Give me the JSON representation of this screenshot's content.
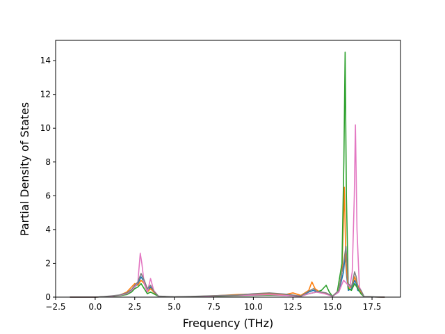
{
  "chart_data": {
    "type": "line",
    "title": "",
    "xlabel": "Frequency (THz)",
    "ylabel": "Partial Density of States",
    "xlim": [
      -2.5,
      19.3
    ],
    "ylim": [
      0,
      15.2
    ],
    "xticks": [
      -2.5,
      0.0,
      2.5,
      5.0,
      7.5,
      10.0,
      12.5,
      15.0,
      17.5
    ],
    "xtick_labels": [
      "−2.5",
      "0.0",
      "2.5",
      "5.0",
      "7.5",
      "10.0",
      "12.5",
      "15.0",
      "17.5"
    ],
    "yticks": [
      0,
      2,
      4,
      6,
      8,
      10,
      12,
      14
    ],
    "ytick_labels": [
      "0",
      "2",
      "4",
      "6",
      "8",
      "10",
      "12",
      "14"
    ],
    "grid": false,
    "legend": "none",
    "series": [
      {
        "color": "#1f77b4",
        "x": [
          -1.6,
          0.0,
          0.5,
          1.0,
          1.5,
          2.0,
          2.3,
          2.5,
          2.7,
          2.9,
          3.1,
          3.3,
          3.5,
          3.7,
          4.0,
          5.0,
          6.0,
          7.0,
          8.0,
          9.0,
          10.0,
          11.0,
          12.0,
          12.5,
          13.0,
          13.5,
          13.8,
          14.0,
          14.3,
          14.6,
          15.0,
          15.4,
          15.7,
          15.8,
          15.9,
          16.0,
          16.2,
          16.4,
          16.5,
          16.6,
          16.8,
          17.0,
          18.3
        ],
        "y": [
          0,
          0,
          0.02,
          0.05,
          0.1,
          0.2,
          0.4,
          0.6,
          0.8,
          1.2,
          0.9,
          0.4,
          0.6,
          0.3,
          0.05,
          0.01,
          0.02,
          0.05,
          0.08,
          0.1,
          0.15,
          0.2,
          0.15,
          0.1,
          0.05,
          0.3,
          0.4,
          0.3,
          0.25,
          0.2,
          0.05,
          0.3,
          1.5,
          2.5,
          1.2,
          0.4,
          0.5,
          1.0,
          0.8,
          0.4,
          0.3,
          0.02,
          0
        ]
      },
      {
        "color": "#ff7f0e",
        "x": [
          -1.6,
          0.0,
          0.5,
          1.0,
          1.5,
          2.0,
          2.3,
          2.5,
          2.7,
          2.9,
          3.1,
          3.3,
          3.5,
          3.7,
          4.0,
          5.0,
          6.0,
          7.0,
          8.0,
          9.0,
          10.0,
          11.0,
          12.0,
          12.5,
          13.0,
          13.5,
          13.7,
          13.9,
          14.2,
          14.6,
          15.0,
          15.4,
          15.6,
          15.75,
          15.85,
          16.0,
          16.2,
          16.4,
          16.6,
          16.8,
          17.0,
          18.3
        ],
        "y": [
          0,
          0,
          0.02,
          0.05,
          0.1,
          0.3,
          0.6,
          0.8,
          0.7,
          1.0,
          0.8,
          0.3,
          0.5,
          0.3,
          0.05,
          0.01,
          0.03,
          0.06,
          0.1,
          0.15,
          0.18,
          0.2,
          0.15,
          0.25,
          0.1,
          0.4,
          0.9,
          0.5,
          0.3,
          0.2,
          0.05,
          0.4,
          1.5,
          6.5,
          2.0,
          0.5,
          0.6,
          1.2,
          0.7,
          0.3,
          0.02,
          0
        ]
      },
      {
        "color": "#2ca02c",
        "x": [
          -1.6,
          0.0,
          0.5,
          1.0,
          1.5,
          2.0,
          2.3,
          2.5,
          2.7,
          2.9,
          3.1,
          3.3,
          3.5,
          3.7,
          4.0,
          5.0,
          6.0,
          7.0,
          8.0,
          9.0,
          10.0,
          11.0,
          12.0,
          13.0,
          13.5,
          14.0,
          14.3,
          14.6,
          14.8,
          15.0,
          15.3,
          15.6,
          15.72,
          15.8,
          15.88,
          16.0,
          16.2,
          16.4,
          16.6,
          16.8,
          17.0,
          18.3
        ],
        "y": [
          0,
          0,
          0.02,
          0.04,
          0.08,
          0.15,
          0.3,
          0.5,
          0.6,
          0.8,
          0.5,
          0.2,
          0.3,
          0.2,
          0.05,
          0.01,
          0.02,
          0.04,
          0.06,
          0.08,
          0.1,
          0.12,
          0.1,
          0.05,
          0.2,
          0.3,
          0.4,
          0.7,
          0.3,
          0.05,
          0.3,
          2.0,
          8.0,
          14.5,
          6.0,
          0.5,
          0.4,
          0.8,
          0.5,
          0.2,
          0.02,
          0
        ]
      },
      {
        "color": "#e377c2",
        "x": [
          -1.6,
          0.0,
          0.5,
          1.0,
          1.5,
          2.0,
          2.3,
          2.5,
          2.7,
          2.85,
          2.95,
          3.1,
          3.3,
          3.5,
          3.7,
          4.0,
          5.0,
          6.0,
          7.0,
          8.0,
          9.0,
          10.0,
          11.0,
          12.0,
          13.0,
          13.5,
          14.0,
          14.5,
          15.0,
          15.4,
          15.7,
          15.9,
          16.1,
          16.25,
          16.38,
          16.45,
          16.55,
          16.7,
          16.9,
          17.0,
          18.3
        ],
        "y": [
          0,
          0,
          0.02,
          0.05,
          0.1,
          0.2,
          0.4,
          0.6,
          0.9,
          2.6,
          2.0,
          0.8,
          0.3,
          1.1,
          0.4,
          0.05,
          0.01,
          0.02,
          0.05,
          0.08,
          0.1,
          0.12,
          0.15,
          0.1,
          0.05,
          0.2,
          0.3,
          0.2,
          0.05,
          0.3,
          1.0,
          0.8,
          0.6,
          1.5,
          6.0,
          10.2,
          4.0,
          0.6,
          0.2,
          0.02,
          0
        ]
      },
      {
        "color": "#7f7f7f",
        "x": [
          -1.6,
          0.0,
          0.5,
          1.0,
          1.5,
          2.0,
          2.3,
          2.5,
          2.7,
          2.9,
          3.1,
          3.3,
          3.5,
          3.7,
          4.0,
          5.0,
          6.0,
          7.0,
          8.0,
          9.0,
          10.0,
          11.0,
          12.0,
          12.5,
          13.0,
          13.5,
          13.8,
          14.0,
          14.3,
          14.6,
          15.0,
          15.4,
          15.7,
          15.85,
          16.0,
          16.2,
          16.4,
          16.5,
          16.6,
          16.8,
          17.0,
          18.3
        ],
        "y": [
          0,
          0,
          0.03,
          0.07,
          0.12,
          0.25,
          0.45,
          0.7,
          0.9,
          1.4,
          1.0,
          0.5,
          0.7,
          0.35,
          0.06,
          0.02,
          0.04,
          0.07,
          0.1,
          0.12,
          0.2,
          0.25,
          0.18,
          0.12,
          0.06,
          0.35,
          0.5,
          0.35,
          0.3,
          0.25,
          0.06,
          0.4,
          2.0,
          3.0,
          0.8,
          0.6,
          1.5,
          1.2,
          0.6,
          0.4,
          0.03,
          0
        ]
      }
    ]
  }
}
